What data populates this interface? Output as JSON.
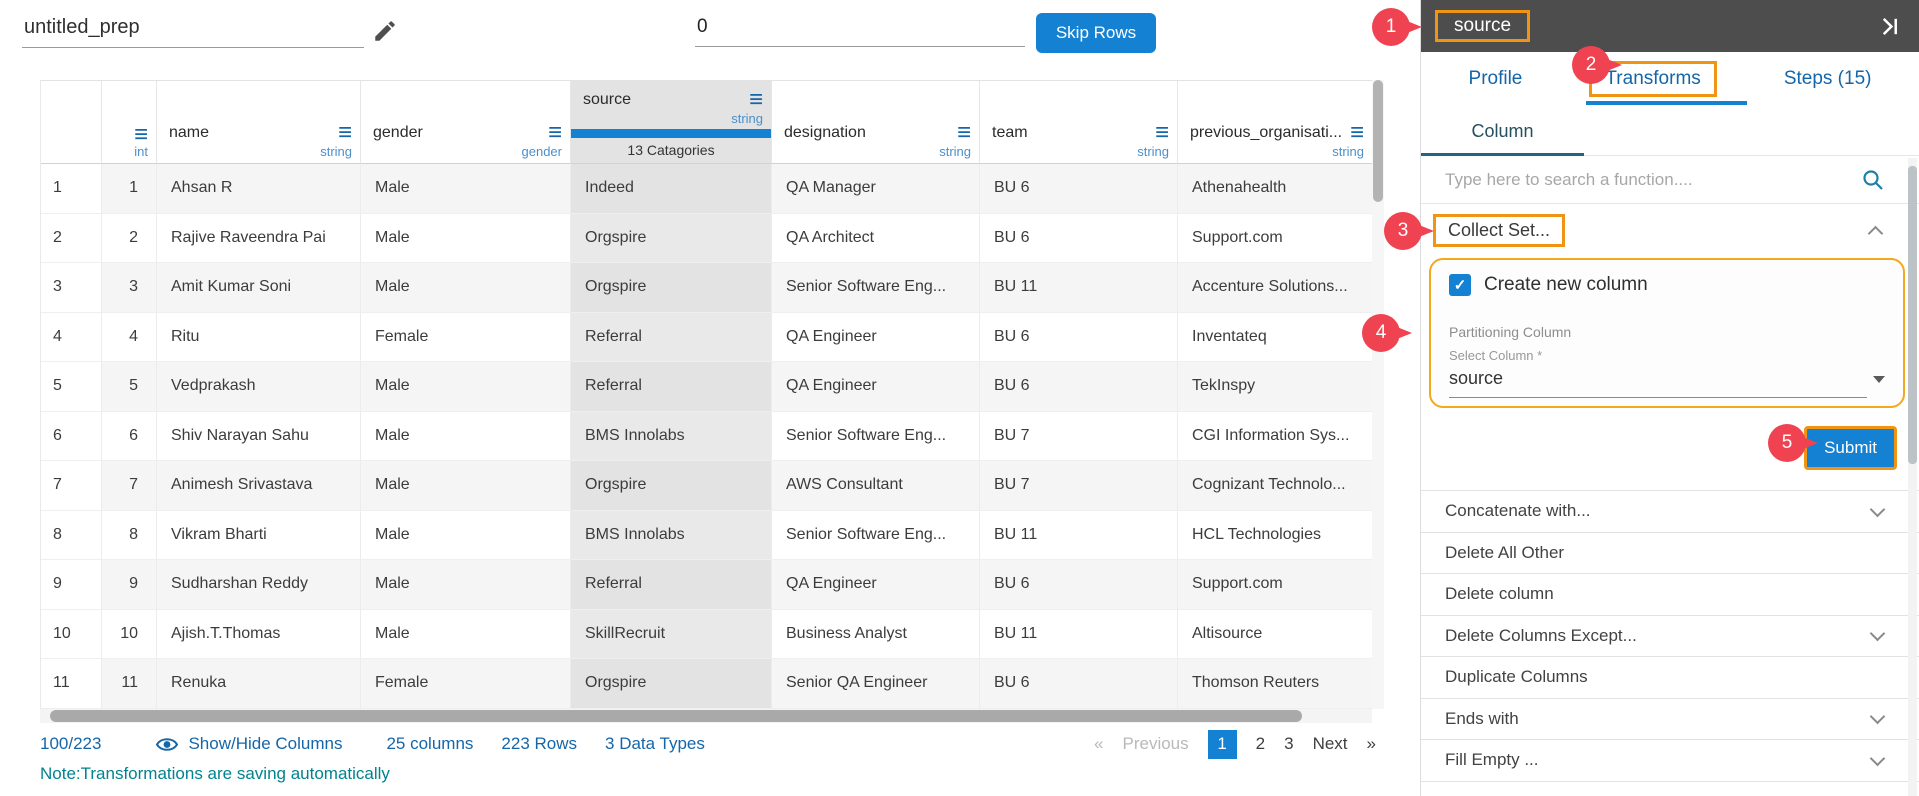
{
  "colors": {
    "accent_blue": "#1581d2",
    "link_blue": "#1566a9",
    "annotation_orange": "#ef9413",
    "annotation_red": "#ef4352",
    "note_teal": "#00838f",
    "type_label_blue": "#4a90cb",
    "panel_header_gray": "#4d4d4d"
  },
  "topbar": {
    "prep_name": "untitled_prep",
    "skip_rows_value": "0",
    "skip_rows_button": "Skip Rows"
  },
  "table": {
    "columns": [
      {
        "name": "",
        "type": "",
        "menu_icon": false
      },
      {
        "name": "",
        "type": "int",
        "menu_icon": true
      },
      {
        "name": "name",
        "type": "string",
        "menu_icon": true
      },
      {
        "name": "gender",
        "type": "gender",
        "menu_icon": true
      },
      {
        "name": "source",
        "type": "string",
        "menu_icon": true,
        "selected": true,
        "categories_badge": "13 Catagories"
      },
      {
        "name": "designation",
        "type": "string",
        "menu_icon": true
      },
      {
        "name": "team",
        "type": "string",
        "menu_icon": true
      },
      {
        "name": "previous_organisati...",
        "type": "string",
        "menu_icon": true
      }
    ],
    "rows": [
      [
        "1",
        "1",
        "Ahsan R",
        "Male",
        "Indeed",
        "QA Manager",
        "BU 6",
        "Athenahealth"
      ],
      [
        "2",
        "2",
        "Rajive Raveendra Pai",
        "Male",
        "Orgspire",
        "QA Architect",
        "BU 6",
        "Support.com"
      ],
      [
        "3",
        "3",
        "Amit Kumar Soni",
        "Male",
        "Orgspire",
        "Senior Software Eng...",
        "BU 11",
        "Accenture Solutions..."
      ],
      [
        "4",
        "4",
        "Ritu",
        "Female",
        "Referral",
        "QA Engineer",
        "BU 6",
        "Inventateq"
      ],
      [
        "5",
        "5",
        "Vedprakash",
        "Male",
        "Referral",
        "QA Engineer",
        "BU 6",
        "TekInspy"
      ],
      [
        "6",
        "6",
        "Shiv Narayan Sahu",
        "Male",
        "BMS Innolabs",
        "Senior Software Eng...",
        "BU 7",
        "CGI Information Sys..."
      ],
      [
        "7",
        "7",
        "Animesh Srivastava",
        "Male",
        "Orgspire",
        "AWS Consultant",
        "BU 7",
        "Cognizant Technolo..."
      ],
      [
        "8",
        "8",
        "Vikram Bharti",
        "Male",
        "BMS Innolabs",
        "Senior Software Eng...",
        "BU 11",
        "HCL Technologies"
      ],
      [
        "9",
        "9",
        "Sudharshan Reddy",
        "Male",
        "Referral",
        "QA Engineer",
        "BU 6",
        "Support.com"
      ],
      [
        "10",
        "10",
        "Ajish.T.Thomas",
        "Male",
        "SkillRecruit",
        "Business Analyst",
        "BU 11",
        "Altisource"
      ],
      [
        "11",
        "11",
        "Renuka",
        "Female",
        "Orgspire",
        "Senior QA Engineer",
        "BU 6",
        "Thomson Reuters"
      ]
    ]
  },
  "footer": {
    "visible_count": "100/223",
    "show_hide_label": "Show/Hide Columns",
    "columns_label": "25 columns",
    "rows_label": "223 Rows",
    "types_label": "3 Data Types",
    "pagination": {
      "prev_arrow": "«",
      "previous_label": "Previous",
      "pages": [
        "1",
        "2",
        "3"
      ],
      "active_page": "1",
      "next_label": "Next",
      "next_arrow": "»"
    },
    "note": "Note:Transformations are saving automatically"
  },
  "panel": {
    "header_title": "source",
    "tabs": [
      {
        "label": "Profile",
        "active": false
      },
      {
        "label": "Transforms",
        "active": true
      },
      {
        "label": "Steps (15)",
        "active": false
      }
    ],
    "subtab": "Column",
    "search_placeholder": "Type here to search a function....",
    "collect_set": {
      "label": "Collect Set...",
      "create_new_column_label": "Create new column",
      "checked": true,
      "check_glyph": "✓",
      "partitioning_label": "Partitioning Column",
      "select_column_label": "Select Column *",
      "selected_column": "source",
      "submit_label": "Submit"
    },
    "functions": [
      {
        "label": "Concatenate with...",
        "expandable": true
      },
      {
        "label": "Delete All Other",
        "expandable": false
      },
      {
        "label": "Delete column",
        "expandable": false
      },
      {
        "label": "Delete Columns Except...",
        "expandable": true
      },
      {
        "label": "Duplicate Columns",
        "expandable": false
      },
      {
        "label": "Ends with",
        "expandable": true
      },
      {
        "label": "Fill Empty ...",
        "expandable": true
      }
    ]
  },
  "annotations": [
    {
      "n": "1"
    },
    {
      "n": "2"
    },
    {
      "n": "3"
    },
    {
      "n": "4"
    },
    {
      "n": "5"
    }
  ]
}
